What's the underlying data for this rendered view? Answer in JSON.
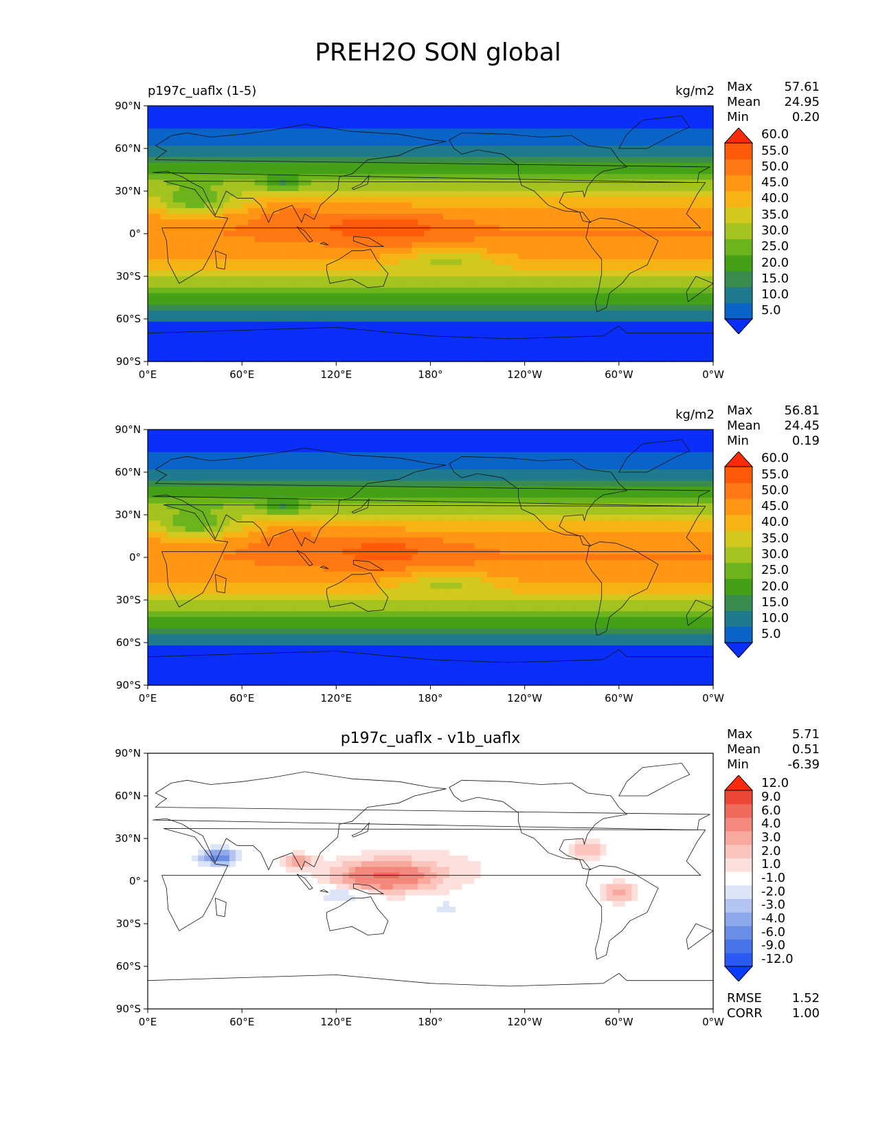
{
  "figure": {
    "title": "PREH2O SON global"
  },
  "map_axes": {
    "lon_ticks": [
      "0°E",
      "60°E",
      "120°E",
      "180°",
      "120°W",
      "60°W",
      "0°W"
    ],
    "lat_ticks": [
      "90°N",
      "60°N",
      "30°N",
      "0°",
      "30°S",
      "60°S",
      "90°S"
    ]
  },
  "panels": [
    {
      "left_title": "p197c_uaflx (1-5)",
      "center_title": "",
      "units": "kg/m2",
      "field": "test",
      "stats": {
        "max_label": "Max",
        "max": "57.61",
        "mean_label": "Mean",
        "mean": "24.95",
        "min_label": "Min",
        "min": "0.20"
      },
      "colorbar": {
        "levels": [
          "5.0",
          "10.0",
          "15.0",
          "20.0",
          "25.0",
          "30.0",
          "35.0",
          "40.0",
          "45.0",
          "50.0",
          "55.0",
          "60.0"
        ],
        "colors": [
          "#0a2ffa",
          "#0a64c8",
          "#1e7a8c",
          "#3a8c4e",
          "#44a016",
          "#6cb41e",
          "#a4c31e",
          "#d2c81e",
          "#f5b414",
          "#ff9614",
          "#ff7814",
          "#ff5a0a",
          "#ff2a0a"
        ]
      }
    },
    {
      "left_title": "",
      "center_title": "",
      "units": "kg/m2",
      "field": "reference",
      "stats": {
        "max_label": "Max",
        "max": "56.81",
        "mean_label": "Mean",
        "mean": "24.45",
        "min_label": "Min",
        "min": "0.19"
      },
      "colorbar": {
        "levels": [
          "5.0",
          "10.0",
          "15.0",
          "20.0",
          "25.0",
          "30.0",
          "35.0",
          "40.0",
          "45.0",
          "50.0",
          "55.0",
          "60.0"
        ],
        "colors": [
          "#0a2ffa",
          "#0a64c8",
          "#1e7a8c",
          "#3a8c4e",
          "#44a016",
          "#6cb41e",
          "#a4c31e",
          "#d2c81e",
          "#f5b414",
          "#ff9614",
          "#ff7814",
          "#ff5a0a",
          "#ff2a0a"
        ]
      }
    },
    {
      "left_title": "",
      "center_title": "p197c_uaflx - v1b_uaflx",
      "units": "",
      "field": "difference",
      "stats": {
        "max_label": "Max",
        "max": "5.71",
        "mean_label": "Mean",
        "mean": "0.51",
        "min_label": "Min",
        "min": "-6.39"
      },
      "errors": {
        "rmse_label": "RMSE",
        "rmse": "1.52",
        "corr_label": "CORR",
        "corr": "1.00"
      },
      "colorbar": {
        "levels": [
          "-12.0",
          "-9.0",
          "-6.0",
          "-4.0",
          "-3.0",
          "-2.0",
          "-1.0",
          "1.0",
          "2.0",
          "3.0",
          "4.0",
          "6.0",
          "9.0",
          "12.0"
        ],
        "colors": [
          "#0a3cff",
          "#2a5af5",
          "#4a74ea",
          "#6a8ee6",
          "#8ea8ec",
          "#b4c4f2",
          "#dce4f8",
          "#ffffff",
          "#fde0dc",
          "#fbc4bc",
          "#f8a89c",
          "#f4887c",
          "#ef6a5a",
          "#f04636",
          "#ff2a0a"
        ]
      }
    }
  ]
}
